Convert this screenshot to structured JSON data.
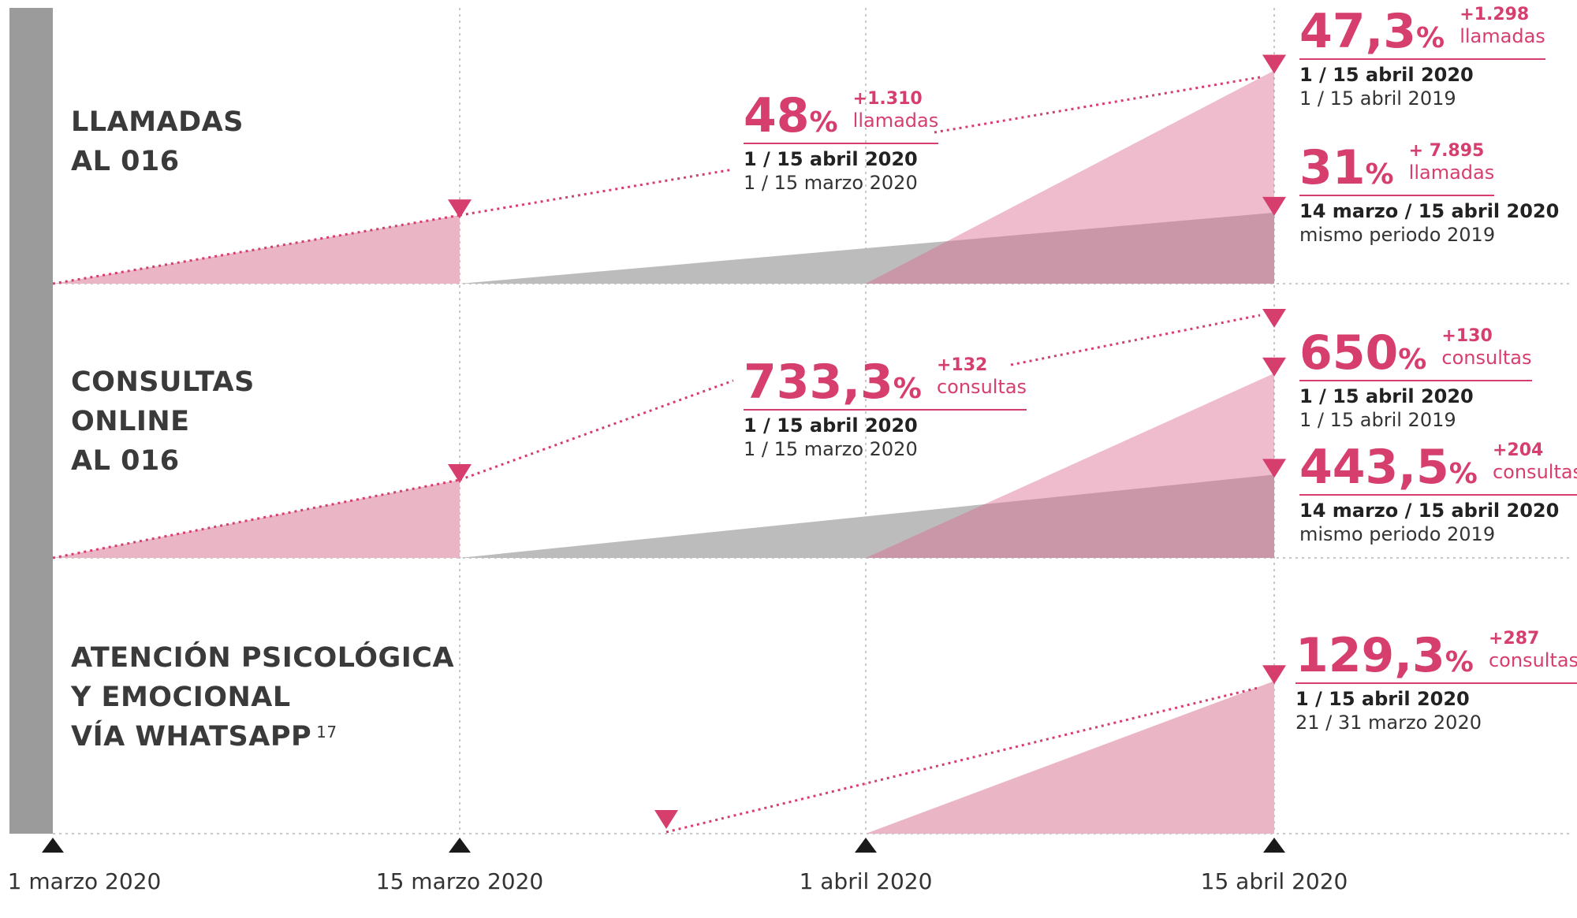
{
  "colors": {
    "pink": "#d63e6e",
    "pink_fill": "#eab5c5",
    "gray_fill": "#bcbcbc",
    "overlap_fill": "#b18f9c",
    "axis_bar": "#9b9b9b",
    "grid": "#c8c8c8",
    "text": "#333333"
  },
  "chart_data": {
    "type": "area",
    "title": "",
    "x": [
      "1 marzo 2020",
      "15 marzo 2020",
      "1 abril 2020",
      "15 abril 2020"
    ],
    "rows": [
      {
        "label_lines": [
          "LLAMADAS",
          "AL 016"
        ],
        "label_sup": "",
        "series": [
          {
            "name": "1 / 15 marzo 2020",
            "start": "1 marzo 2020",
            "end": "15 marzo 2020",
            "relative_height": 0.26
          },
          {
            "name": "14 marzo / 15 abril 2020 mismo periodo 2019",
            "start": "15 marzo 2020",
            "end": "15 abril 2020",
            "relative_height": 0.27
          },
          {
            "name": "1 / 15 abril 2020",
            "start": "1 abril 2020",
            "end": "15 abril 2020",
            "relative_height": 0.81
          }
        ],
        "annotations": [
          {
            "pct": "48",
            "delta": "+1.310",
            "unit": "llamadas",
            "period_main": "1 / 15 abril 2020",
            "period_compare": "1 / 15 marzo 2020"
          },
          {
            "pct": "47,3",
            "delta": "+1.298",
            "unit": "llamadas",
            "period_main": "1 / 15 abril 2020",
            "period_compare": "1 / 15 abril 2019"
          },
          {
            "pct": "31",
            "delta": "+ 7.895",
            "unit": "llamadas",
            "period_main": "14 marzo / 15 abril 2020",
            "period_compare": "mismo periodo 2019"
          }
        ]
      },
      {
        "label_lines": [
          "CONSULTAS",
          "ONLINE",
          "AL  016"
        ],
        "label_sup": "",
        "series": [
          {
            "name": "1 / 15 marzo 2020",
            "start": "1 marzo 2020",
            "end": "15 marzo 2020",
            "relative_height": 0.3
          },
          {
            "name": "14 marzo / 15 abril 2020 mismo periodo 2019",
            "start": "15 marzo 2020",
            "end": "15 abril 2020",
            "relative_height": 0.32
          },
          {
            "name": "1 / 15 abril 2020",
            "start": "1 abril 2020",
            "end": "15 abril 2020",
            "relative_height": 0.71
          }
        ],
        "annotations": [
          {
            "pct": "733,3",
            "delta": "+132",
            "unit": "consultas",
            "period_main": "1 / 15 abril 2020",
            "period_compare": "1 / 15 marzo 2020"
          },
          {
            "pct": "650",
            "delta": "+130",
            "unit": "consultas",
            "period_main": "1 / 15 abril 2020",
            "period_compare": "1 / 15 abril 2019"
          },
          {
            "pct": "443,5",
            "delta": "+204",
            "unit": "consultas",
            "period_main": "14 marzo / 15 abril 2020",
            "period_compare": "mismo periodo 2019"
          }
        ]
      },
      {
        "label_lines": [
          "ATENCIÓN PSICOLÓGICA",
          "Y EMOCIONAL",
          "VÍA WHATSAPP"
        ],
        "label_sup": "17",
        "series": [
          {
            "name": "1 / 15 abril 2020",
            "start": "1 abril 2020",
            "end": "15 abril 2020",
            "relative_height": 0.58
          }
        ],
        "annotations": [
          {
            "pct": "129,3",
            "delta": "+287",
            "unit": "consultas",
            "period_main": "1 / 15 abril 2020",
            "period_compare": "21 / 31 marzo 2020"
          }
        ]
      }
    ]
  }
}
